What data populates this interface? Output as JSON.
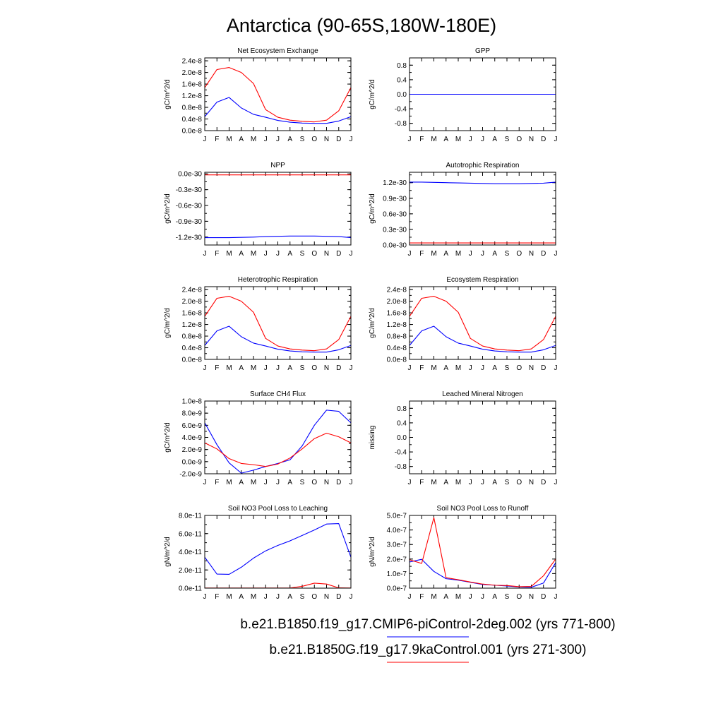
{
  "title": "Antarctica (90-65S,180W-180E)",
  "months": [
    "J",
    "F",
    "M",
    "A",
    "M",
    "J",
    "J",
    "A",
    "S",
    "O",
    "N",
    "D",
    "J"
  ],
  "colors": {
    "run1": "#0000ff",
    "run2": "#ff0000",
    "axis": "#000000",
    "background": "#ffffff"
  },
  "legend": [
    {
      "label": "b.e21.B1850.f19_g17.CMIP6-piControl-2deg.002 (yrs 771-800)",
      "color": "#0000ff"
    },
    {
      "label": "b.e21.B1850G.f19_g17.9kaControl.001 (yrs 271-300)",
      "color": "#ff0000"
    }
  ],
  "chart_data": [
    {
      "type": "line",
      "title": "Net Ecosystem Exchange",
      "ylabel": "gC/m^2/d",
      "ylim": [
        0,
        2.5e-08
      ],
      "yticks": [
        0,
        4e-09,
        8e-09,
        1.2e-08,
        1.6e-08,
        2e-08,
        2.4e-08
      ],
      "yticklabels": [
        "0.0e-8",
        "0.4e-8",
        "0.8e-8",
        "1.2e-8",
        "1.6e-8",
        "2.0e-8",
        "2.4e-8"
      ],
      "x": [
        "J",
        "F",
        "M",
        "A",
        "M",
        "J",
        "J",
        "A",
        "S",
        "O",
        "N",
        "D",
        "J"
      ],
      "series": [
        {
          "color": "#0000ff",
          "values": [
            4.8e-09,
            9.8e-09,
            1.14e-08,
            7.8e-09,
            5.6e-09,
            4.6e-09,
            3.5e-09,
            2.9e-09,
            2.6e-09,
            2.5e-09,
            2.5e-09,
            3.3e-09,
            4.8e-09
          ]
        },
        {
          "color": "#ff0000",
          "values": [
            1.48e-08,
            2.1e-08,
            2.17e-08,
            2e-08,
            1.62e-08,
            7.2e-09,
            4.6e-09,
            3.6e-09,
            3.2e-09,
            3e-09,
            3.6e-09,
            6.8e-09,
            1.48e-08
          ]
        }
      ]
    },
    {
      "type": "line",
      "title": "GPP",
      "ylabel": "gC/m^2/d",
      "ylim": [
        -1,
        1
      ],
      "yticks": [
        -0.8,
        -0.4,
        0,
        0.4,
        0.8
      ],
      "yticklabels": [
        "-0.8",
        "-0.4",
        "0.0",
        "0.4",
        "0.8"
      ],
      "x": [
        "J",
        "F",
        "M",
        "A",
        "M",
        "J",
        "J",
        "A",
        "S",
        "O",
        "N",
        "D",
        "J"
      ],
      "series": [
        {
          "color": "#ff0000",
          "values": [
            0,
            0,
            0,
            0,
            0,
            0,
            0,
            0,
            0,
            0,
            0,
            0,
            0
          ]
        },
        {
          "color": "#0000ff",
          "values": [
            0,
            0,
            0,
            0,
            0,
            0,
            0,
            0,
            0,
            0,
            0,
            0,
            0
          ]
        }
      ]
    },
    {
      "type": "line",
      "title": "NPP",
      "ylabel": "gC/m^2/d",
      "ylim": [
        -1.35e-30,
        3e-32
      ],
      "yticks": [
        -1.2e-30,
        -9e-31,
        -6e-31,
        -3e-31,
        0
      ],
      "yticklabels": [
        "-1.2e-30",
        "-0.9e-30",
        "-0.6e-30",
        "-0.3e-30",
        "0.0e-30"
      ],
      "x": [
        "J",
        "F",
        "M",
        "A",
        "M",
        "J",
        "J",
        "A",
        "S",
        "O",
        "N",
        "D",
        "J"
      ],
      "series": [
        {
          "color": "#0000ff",
          "values": [
            -1.21e-30,
            -1.21e-30,
            -1.21e-30,
            -1.205e-30,
            -1.2e-30,
            -1.19e-30,
            -1.185e-30,
            -1.18e-30,
            -1.18e-30,
            -1.18e-30,
            -1.185e-30,
            -1.19e-30,
            -1.21e-30
          ]
        },
        {
          "color": "#ff0000",
          "values": [
            -2e-32,
            -2e-32,
            -2e-32,
            -2e-32,
            -2e-32,
            -2e-32,
            -2e-32,
            -2e-32,
            -2e-32,
            -2e-32,
            -2e-32,
            -2e-32,
            -2e-32
          ]
        }
      ]
    },
    {
      "type": "line",
      "title": "Autotrophic Respiration",
      "ylabel": "gC/m^2/d",
      "ylim": [
        0,
        1.4e-30
      ],
      "yticks": [
        0,
        3e-31,
        6e-31,
        9e-31,
        1.2e-30
      ],
      "yticklabels": [
        "0.0e-30",
        "0.3e-30",
        "0.6e-30",
        "0.9e-30",
        "1.2e-30"
      ],
      "x": [
        "J",
        "F",
        "M",
        "A",
        "M",
        "J",
        "J",
        "A",
        "S",
        "O",
        "N",
        "D",
        "J"
      ],
      "series": [
        {
          "color": "#0000ff",
          "values": [
            1.21e-30,
            1.21e-30,
            1.205e-30,
            1.2e-30,
            1.195e-30,
            1.19e-30,
            1.185e-30,
            1.18e-30,
            1.18e-30,
            1.18e-30,
            1.185e-30,
            1.19e-30,
            1.21e-30
          ]
        },
        {
          "color": "#ff0000",
          "values": [
            4e-32,
            4e-32,
            4e-32,
            4e-32,
            4e-32,
            4e-32,
            4e-32,
            4e-32,
            4e-32,
            4e-32,
            4e-32,
            4e-32,
            4e-32
          ]
        }
      ]
    },
    {
      "type": "line",
      "title": "Heterotrophic Respiration",
      "ylabel": "gC/m^2/d",
      "ylim": [
        0,
        2.5e-08
      ],
      "yticks": [
        0,
        4e-09,
        8e-09,
        1.2e-08,
        1.6e-08,
        2e-08,
        2.4e-08
      ],
      "yticklabels": [
        "0.0e-8",
        "0.4e-8",
        "0.8e-8",
        "1.2e-8",
        "1.6e-8",
        "2.0e-8",
        "2.4e-8"
      ],
      "x": [
        "J",
        "F",
        "M",
        "A",
        "M",
        "J",
        "J",
        "A",
        "S",
        "O",
        "N",
        "D",
        "J"
      ],
      "series": [
        {
          "color": "#0000ff",
          "values": [
            4.8e-09,
            9.8e-09,
            1.14e-08,
            7.8e-09,
            5.6e-09,
            4.6e-09,
            3.5e-09,
            2.9e-09,
            2.6e-09,
            2.5e-09,
            2.5e-09,
            3.3e-09,
            4.8e-09
          ]
        },
        {
          "color": "#ff0000",
          "values": [
            1.48e-08,
            2.1e-08,
            2.17e-08,
            2e-08,
            1.62e-08,
            7.2e-09,
            4.6e-09,
            3.6e-09,
            3.2e-09,
            3e-09,
            3.6e-09,
            6.8e-09,
            1.48e-08
          ]
        }
      ]
    },
    {
      "type": "line",
      "title": "Ecosystem Respiration",
      "ylabel": "gC/m^2/d",
      "ylim": [
        0,
        2.5e-08
      ],
      "yticks": [
        0,
        4e-09,
        8e-09,
        1.2e-08,
        1.6e-08,
        2e-08,
        2.4e-08
      ],
      "yticklabels": [
        "0.0e-8",
        "0.4e-8",
        "0.8e-8",
        "1.2e-8",
        "1.6e-8",
        "2.0e-8",
        "2.4e-8"
      ],
      "x": [
        "J",
        "F",
        "M",
        "A",
        "M",
        "J",
        "J",
        "A",
        "S",
        "O",
        "N",
        "D",
        "J"
      ],
      "series": [
        {
          "color": "#0000ff",
          "values": [
            4.8e-09,
            9.8e-09,
            1.14e-08,
            7.8e-09,
            5.6e-09,
            4.6e-09,
            3.5e-09,
            2.9e-09,
            2.6e-09,
            2.5e-09,
            2.5e-09,
            3.3e-09,
            4.8e-09
          ]
        },
        {
          "color": "#ff0000",
          "values": [
            1.48e-08,
            2.1e-08,
            2.17e-08,
            2e-08,
            1.62e-08,
            7.2e-09,
            4.6e-09,
            3.6e-09,
            3.2e-09,
            3e-09,
            3.6e-09,
            6.8e-09,
            1.48e-08
          ]
        }
      ]
    },
    {
      "type": "line",
      "title": "Surface CH4 Flux",
      "ylabel": "gC/m^2/d",
      "ylim": [
        -2e-09,
        1e-08
      ],
      "yticks": [
        -2e-09,
        0,
        2e-09,
        4e-09,
        6e-09,
        8e-09,
        1e-08
      ],
      "yticklabels": [
        "-2.0e-9",
        "0.0e-9",
        "2.0e-9",
        "4.0e-9",
        "6.0e-9",
        "8.0e-9",
        "1.0e-8"
      ],
      "x": [
        "J",
        "F",
        "M",
        "A",
        "M",
        "J",
        "J",
        "A",
        "S",
        "O",
        "N",
        "D",
        "J"
      ],
      "series": [
        {
          "color": "#0000ff",
          "values": [
            6.4e-09,
            2.8e-09,
            -2e-10,
            -1.9e-09,
            -1.4e-09,
            -8e-10,
            -3e-10,
            3e-10,
            2.6e-09,
            6e-09,
            8.5e-09,
            8.3e-09,
            6.4e-09
          ]
        },
        {
          "color": "#ff0000",
          "values": [
            3.1e-09,
            2.1e-09,
            5e-10,
            -3e-10,
            -5e-10,
            -8e-10,
            -4e-10,
            6e-10,
            2.1e-09,
            3.8e-09,
            4.7e-09,
            4.1e-09,
            3.1e-09
          ]
        }
      ]
    },
    {
      "type": "line",
      "title": "Leached Mineral Nitrogen",
      "ylabel": "missing",
      "ylim": [
        -1,
        1
      ],
      "yticks": [
        -0.8,
        -0.4,
        0,
        0.4,
        0.8
      ],
      "yticklabels": [
        "-0.8",
        "-0.4",
        "0.0",
        "0.4",
        "0.8"
      ],
      "x": [
        "J",
        "F",
        "M",
        "A",
        "M",
        "J",
        "J",
        "A",
        "S",
        "O",
        "N",
        "D",
        "J"
      ],
      "series": []
    },
    {
      "type": "line",
      "title": "Soil NO3 Pool Loss to Leaching",
      "ylabel": "gN/m^2/d",
      "ylim": [
        0,
        8e-11
      ],
      "yticks": [
        0,
        2e-11,
        4e-11,
        6e-11,
        8e-11
      ],
      "yticklabels": [
        "0.0e-11",
        "2.0e-11",
        "4.0e-11",
        "6.0e-11",
        "8.0e-11"
      ],
      "x": [
        "J",
        "F",
        "M",
        "A",
        "M",
        "J",
        "J",
        "A",
        "S",
        "O",
        "N",
        "D",
        "J"
      ],
      "series": [
        {
          "color": "#0000ff",
          "values": [
            3.4e-11,
            1.55e-11,
            1.52e-11,
            2.3e-11,
            3.3e-11,
            4.1e-11,
            4.7e-11,
            5.2e-11,
            5.8e-11,
            6.4e-11,
            7.05e-11,
            7.1e-11,
            3.4e-11
          ]
        },
        {
          "color": "#ff0000",
          "values": [
            2e-13,
            2e-13,
            2e-13,
            2e-13,
            2e-13,
            2e-13,
            2e-13,
            2e-13,
            2e-12,
            5.5e-12,
            4.5e-12,
            3e-13,
            2e-13
          ]
        }
      ]
    },
    {
      "type": "line",
      "title": "Soil NO3 Pool Loss to Runoff",
      "ylabel": "gN/m^2/d",
      "ylim": [
        0,
        5e-07
      ],
      "yticks": [
        0,
        1e-07,
        2e-07,
        3e-07,
        4e-07,
        5e-07
      ],
      "yticklabels": [
        "0.0e-7",
        "1.0e-7",
        "2.0e-7",
        "3.0e-7",
        "4.0e-7",
        "5.0e-7"
      ],
      "x": [
        "J",
        "F",
        "M",
        "A",
        "M",
        "J",
        "J",
        "A",
        "S",
        "O",
        "N",
        "D",
        "J"
      ],
      "series": [
        {
          "color": "#0000ff",
          "values": [
            1.8e-07,
            1.98e-07,
            1.15e-07,
            6.5e-08,
            5.5e-08,
            4e-08,
            2.5e-08,
            2e-08,
            1.5e-08,
            8e-09,
            6e-09,
            3.5e-08,
            1.75e-07
          ]
        },
        {
          "color": "#ff0000",
          "values": [
            1.95e-07,
            1.7e-07,
            4.85e-07,
            7.2e-08,
            5.8e-08,
            4.2e-08,
            2.8e-08,
            2e-08,
            1.8e-08,
            1e-08,
            1.2e-08,
            8.5e-08,
            2e-07
          ]
        }
      ]
    }
  ]
}
